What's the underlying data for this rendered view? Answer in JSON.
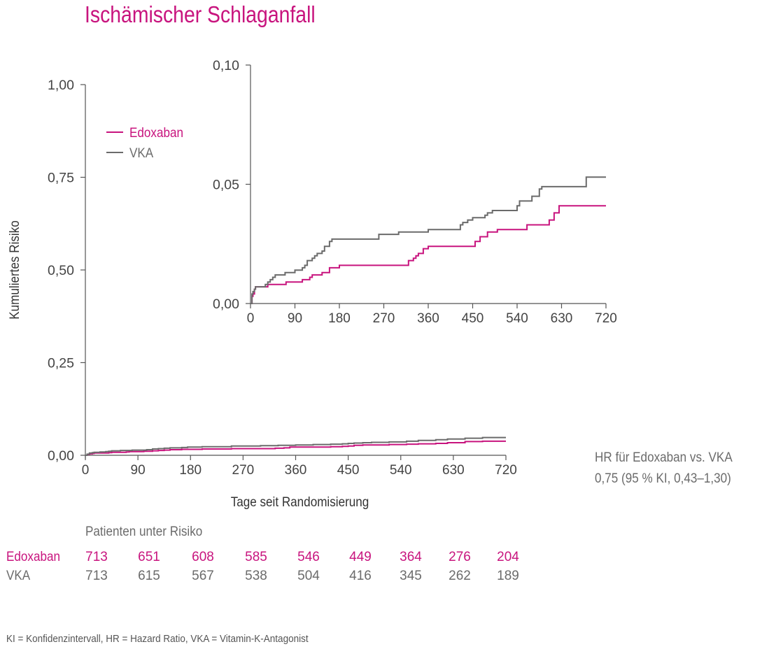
{
  "title": "Ischämischer Schlaganfall",
  "colors": {
    "edoxaban": "#c8147e",
    "vka": "#6b6b6b",
    "axis": "#555555"
  },
  "chart_data": [
    {
      "type": "line",
      "step": true,
      "xlabel": "Tage seit Randomisierung",
      "ylabel": "Kumuliertes Risiko",
      "x_ticks": [
        "0",
        "90",
        "180",
        "270",
        "360",
        "450",
        "540",
        "630",
        "720"
      ],
      "y_ticks": [
        "0,00",
        "0,25",
        "0,50",
        "0,75",
        "1,00"
      ],
      "xlim": [
        0,
        720
      ],
      "ylim": [
        0,
        1
      ],
      "legend": {
        "position": "top-left",
        "items": [
          "Edoxaban",
          "VKA"
        ]
      },
      "series": [
        {
          "name": "Edoxaban",
          "x": [
            0,
            3,
            7,
            12,
            15,
            35,
            40,
            45,
            60,
            70,
            75,
            80,
            100,
            115,
            125,
            135,
            145,
            165,
            175,
            200,
            250,
            300,
            325,
            340,
            350,
            360,
            390,
            420,
            440,
            450,
            460,
            475,
            490,
            520,
            550,
            570,
            600,
            620,
            650,
            680,
            720
          ],
          "y": [
            0,
            0.002,
            0.004,
            0.005,
            0.006,
            0.006,
            0.007,
            0.008,
            0.008,
            0.009,
            0.01,
            0.01,
            0.011,
            0.012,
            0.013,
            0.014,
            0.015,
            0.016,
            0.016,
            0.017,
            0.018,
            0.018,
            0.019,
            0.02,
            0.022,
            0.022,
            0.022,
            0.023,
            0.024,
            0.025,
            0.027,
            0.028,
            0.028,
            0.029,
            0.03,
            0.031,
            0.032,
            0.034,
            0.037,
            0.038,
            0.038
          ]
        },
        {
          "name": "VKA",
          "x": [
            0,
            3,
            7,
            12,
            15,
            25,
            35,
            40,
            45,
            60,
            80,
            90,
            105,
            115,
            125,
            135,
            145,
            165,
            175,
            200,
            250,
            300,
            330,
            360,
            390,
            420,
            440,
            450,
            460,
            475,
            490,
            520,
            550,
            570,
            600,
            620,
            650,
            680,
            720
          ],
          "y": [
            0,
            0.003,
            0.006,
            0.007,
            0.008,
            0.009,
            0.01,
            0.011,
            0.012,
            0.013,
            0.014,
            0.014,
            0.015,
            0.017,
            0.018,
            0.019,
            0.02,
            0.021,
            0.022,
            0.023,
            0.025,
            0.026,
            0.027,
            0.028,
            0.029,
            0.03,
            0.031,
            0.032,
            0.033,
            0.034,
            0.035,
            0.036,
            0.038,
            0.04,
            0.042,
            0.044,
            0.046,
            0.048,
            0.048
          ]
        }
      ]
    },
    {
      "type": "line",
      "step": true,
      "inset": true,
      "x_ticks": [
        "0",
        "90",
        "180",
        "270",
        "360",
        "450",
        "540",
        "630",
        "720"
      ],
      "y_ticks": [
        "0,00",
        "0,05",
        "0,10"
      ],
      "xlim": [
        0,
        720
      ],
      "ylim": [
        0,
        0.1
      ],
      "series": [
        {
          "name": "Edoxaban",
          "x": [
            0,
            3,
            5,
            8,
            10,
            20,
            30,
            35,
            40,
            60,
            70,
            72,
            100,
            105,
            115,
            120,
            125,
            140,
            145,
            160,
            180,
            300,
            320,
            330,
            335,
            340,
            350,
            360,
            420,
            455,
            460,
            465,
            475,
            480,
            490,
            500,
            530,
            540,
            560,
            570,
            605,
            615,
            625,
            640,
            720
          ],
          "y": [
            0,
            0.003,
            0.004,
            0.006,
            0.007,
            0.007,
            0.007,
            0.008,
            0.008,
            0.008,
            0.008,
            0.009,
            0.009,
            0.01,
            0.01,
            0.011,
            0.012,
            0.012,
            0.013,
            0.015,
            0.016,
            0.016,
            0.018,
            0.019,
            0.02,
            0.021,
            0.023,
            0.024,
            0.024,
            0.026,
            0.026,
            0.028,
            0.028,
            0.03,
            0.03,
            0.031,
            0.031,
            0.031,
            0.033,
            0.033,
            0.035,
            0.038,
            0.041,
            0.041,
            0.041
          ]
        },
        {
          "name": "VKA",
          "x": [
            0,
            3,
            5,
            8,
            10,
            20,
            30,
            35,
            40,
            45,
            50,
            60,
            70,
            90,
            105,
            110,
            115,
            125,
            130,
            135,
            140,
            145,
            150,
            160,
            165,
            180,
            200,
            240,
            260,
            300,
            340,
            360,
            420,
            425,
            430,
            440,
            450,
            460,
            475,
            480,
            490,
            530,
            540,
            545,
            560,
            570,
            585,
            590,
            600,
            660,
            680,
            720
          ],
          "y": [
            0,
            0.004,
            0.005,
            0.006,
            0.007,
            0.007,
            0.008,
            0.009,
            0.01,
            0.011,
            0.012,
            0.012,
            0.013,
            0.014,
            0.015,
            0.016,
            0.018,
            0.019,
            0.02,
            0.021,
            0.021,
            0.022,
            0.024,
            0.026,
            0.027,
            0.027,
            0.027,
            0.027,
            0.029,
            0.03,
            0.03,
            0.031,
            0.031,
            0.033,
            0.034,
            0.035,
            0.036,
            0.036,
            0.037,
            0.038,
            0.039,
            0.039,
            0.041,
            0.043,
            0.043,
            0.045,
            0.048,
            0.049,
            0.049,
            0.049,
            0.053,
            0.053
          ]
        }
      ]
    }
  ],
  "hr": {
    "line1": "HR für Edoxaban vs. VKA",
    "line2": "0,75 (95 % KI, 0,43–1,30)"
  },
  "risk_table": {
    "header": "Patienten unter Risiko",
    "rows": [
      {
        "label": "Edoxaban",
        "values": [
          "713",
          "651",
          "608",
          "585",
          "546",
          "449",
          "364",
          "276",
          "204"
        ]
      },
      {
        "label": "VKA",
        "values": [
          "713",
          "615",
          "567",
          "538",
          "504",
          "416",
          "345",
          "262",
          "189"
        ]
      }
    ]
  },
  "footnote": "KI = Konfidenzintervall, HR = Hazard Ratio, VKA = Vitamin-K-Antagonist"
}
